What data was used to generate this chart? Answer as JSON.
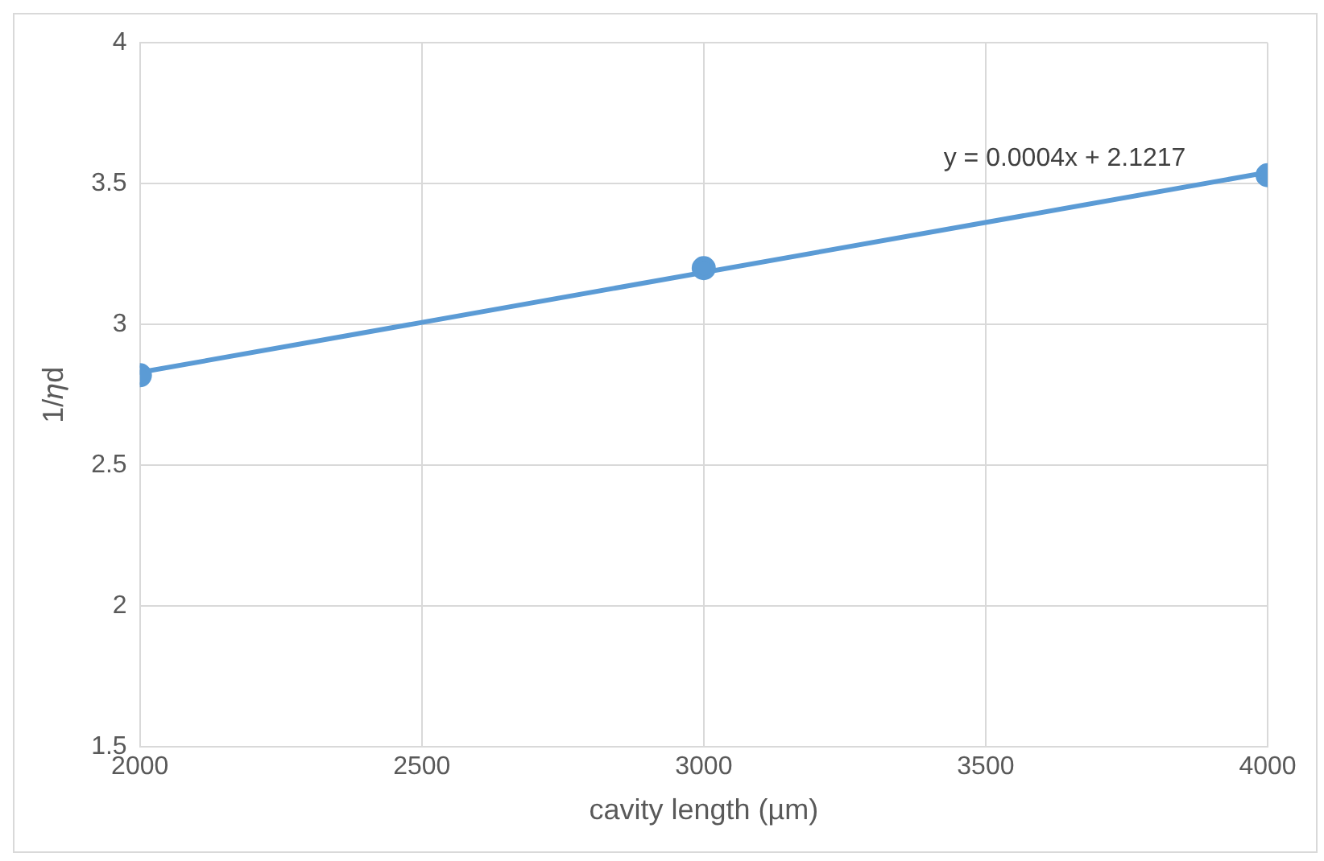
{
  "chart_data": {
    "type": "scatter",
    "xlabel": "cavity length (µm)",
    "ylabel": "1/𝜂d",
    "x": [
      2000,
      3000,
      4000
    ],
    "series": [
      {
        "color": "#5b9bd5",
        "values": [
          2.82,
          3.2,
          3.53
        ],
        "marker": "circle"
      },
      {
        "type": "line",
        "color": "#5b9bd5",
        "x": [
          2000,
          4000
        ],
        "values": [
          2.83,
          3.54
        ],
        "marker": "none",
        "line_style": "solid"
      }
    ],
    "xlim": [
      2000,
      4000
    ],
    "xticks": [
      2000,
      2500,
      3000,
      3500,
      4000
    ],
    "ylim": [
      1.5,
      4
    ],
    "yticks": [
      1.5,
      2,
      2.5,
      3,
      3.5,
      4
    ],
    "grid": true,
    "legend": false,
    "annotations": [
      "y = 0.0004x + 2.1217"
    ]
  }
}
